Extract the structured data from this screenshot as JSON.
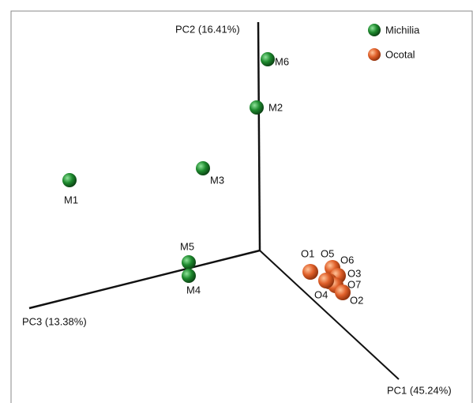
{
  "axes": {
    "pc1": "PC1 (45.24%)",
    "pc2": "PC2 (16.41%)",
    "pc3": "PC3 (13.38%)"
  },
  "legend": [
    {
      "label": "Michilia",
      "color": "#1e8a2e"
    },
    {
      "label": "Ocotal",
      "color": "#e0602a"
    }
  ],
  "points": [
    {
      "label": "M1",
      "group": 0
    },
    {
      "label": "M3",
      "group": 0
    },
    {
      "label": "M6",
      "group": 0
    },
    {
      "label": "M2",
      "group": 0
    },
    {
      "label": "M5",
      "group": 0
    },
    {
      "label": "M4",
      "group": 0
    },
    {
      "label": "O1",
      "group": 1
    },
    {
      "label": "O5",
      "group": 1
    },
    {
      "label": "O6",
      "group": 1
    },
    {
      "label": "O3",
      "group": 1
    },
    {
      "label": "O7",
      "group": 1
    },
    {
      "label": "O4",
      "group": 1
    },
    {
      "label": "O2",
      "group": 1
    }
  ]
}
